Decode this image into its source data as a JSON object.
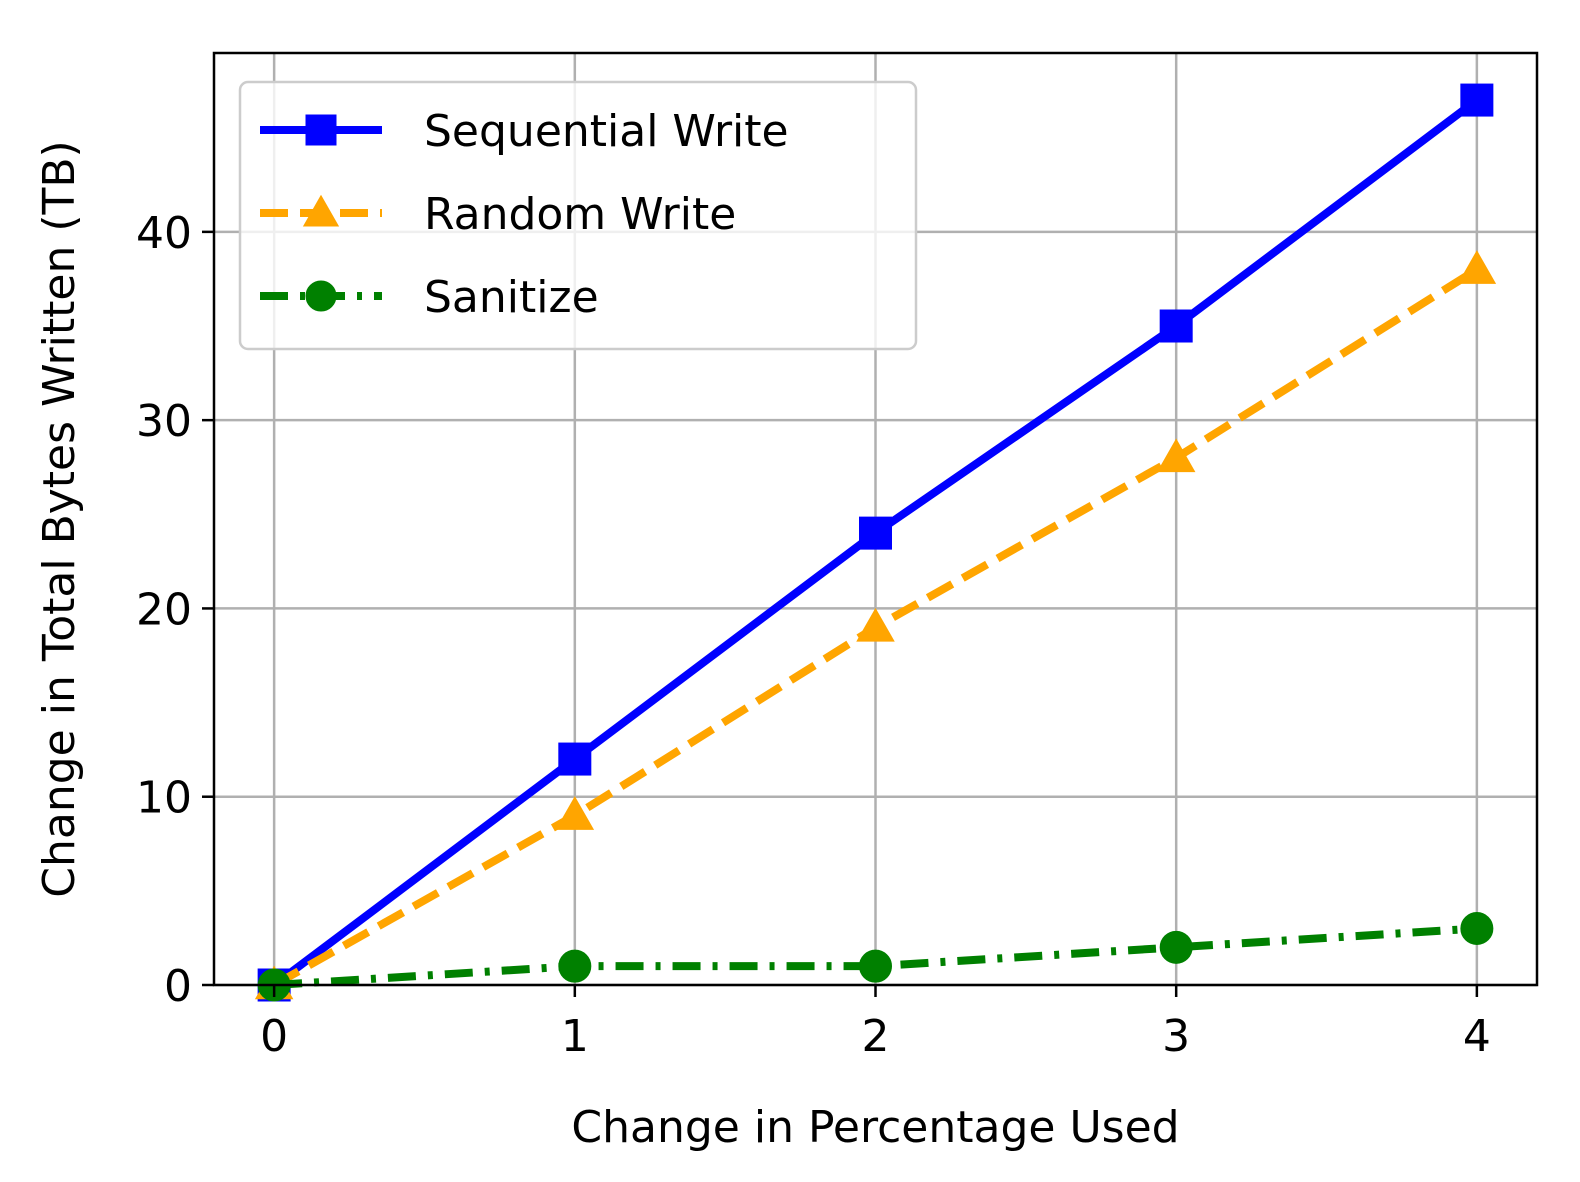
{
  "chart_data": {
    "type": "line",
    "title": "",
    "xlabel": "Change in Percentage Used",
    "ylabel": "Change in Total Bytes Written (TB)",
    "x": [
      0,
      1,
      2,
      3,
      4
    ],
    "xticks": [
      0,
      1,
      2,
      3,
      4
    ],
    "yticks": [
      0,
      10,
      20,
      30,
      40
    ],
    "xlim": [
      -0.2,
      4.2
    ],
    "ylim": [
      0,
      49.5
    ],
    "grid": true,
    "legend_position": "top-left",
    "series": [
      {
        "name": "Sequential Write",
        "values": [
          0,
          12,
          24,
          35,
          47
        ],
        "color": "#0000ff",
        "linestyle": "solid",
        "marker": "square"
      },
      {
        "name": "Random Write",
        "values": [
          0,
          9,
          19,
          28,
          38
        ],
        "color": "#ffa500",
        "linestyle": "dashed",
        "marker": "triangle"
      },
      {
        "name": "Sanitize",
        "values": [
          0,
          1,
          1,
          2,
          3
        ],
        "color": "#008000",
        "linestyle": "dashdot",
        "marker": "circle"
      }
    ]
  }
}
